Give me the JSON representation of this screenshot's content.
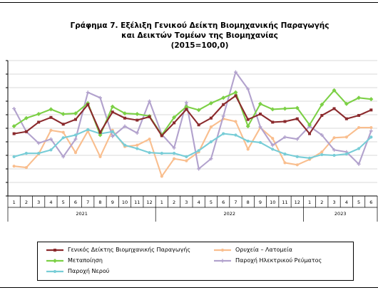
{
  "chart_data": {
    "type": "line",
    "title": [
      "Γράφημα 7. Εξέλιξη Γενικού Δείκτη Βιομηχανικής Παραγωγής",
      "και Δεικτών Τομέων της Βιομηχανίας",
      "(2015=100,0)"
    ],
    "xlabel": "",
    "ylabel": "",
    "months": [
      "1",
      "2",
      "3",
      "4",
      "5",
      "6",
      "7",
      "8",
      "9",
      "10",
      "11",
      "12",
      "1",
      "2",
      "3",
      "4",
      "5",
      "6",
      "7",
      "8",
      "9",
      "10",
      "11",
      "12",
      "1",
      "2",
      "3",
      "4",
      "5",
      "6"
    ],
    "years": [
      "2021",
      "2022",
      "2023"
    ],
    "grid": true,
    "legend": "bottom",
    "series": [
      {
        "name": "Γενικός Δείκτης Βιομηχανικής Παραγωγής",
        "color": "#8B2A2D",
        "marker": "square",
        "values": [
          92,
          95,
          109,
          116,
          106,
          113,
          135,
          94,
          124,
          115,
          112,
          117,
          89,
          108,
          128,
          105,
          115,
          135,
          148,
          113,
          121,
          109,
          110,
          114,
          92,
          119,
          129,
          114,
          119,
          127
        ]
      },
      {
        "name": "Ορυχεία – Λατομεία",
        "color": "#F9BE8E",
        "marker": "circle",
        "values": [
          44,
          42,
          62,
          97,
          94,
          64,
          96,
          58,
          97,
          73,
          75,
          84,
          29,
          55,
          52,
          65,
          102,
          114,
          110,
          69,
          101,
          85,
          49,
          46,
          54,
          65,
          86,
          87,
          101,
          101
        ]
      },
      {
        "name": "Μεταποίηση",
        "color": "#7CD046",
        "marker": "diamond",
        "values": [
          103,
          115,
          121,
          128,
          121,
          122,
          137,
          90,
          132,
          122,
          121,
          118,
          90,
          116,
          132,
          127,
          137,
          145,
          153,
          103,
          136,
          128,
          129,
          130,
          105,
          135,
          156,
          136,
          145,
          143
        ]
      },
      {
        "name": "Παροχή Ηλεκτρικού Ρεύματος",
        "color": "#B2A2CD",
        "marker": "plus",
        "values": [
          129,
          95,
          78,
          84,
          58,
          84,
          153,
          145,
          88,
          103,
          93,
          140,
          91,
          71,
          138,
          40,
          55,
          118,
          183,
          158,
          102,
          75,
          87,
          84,
          103,
          90,
          68,
          65,
          47,
          96
        ]
      },
      {
        "name": "Παροχή Νερού",
        "color": "#78CDD7",
        "marker": "circle",
        "values": [
          58,
          63,
          63,
          68,
          86,
          90,
          98,
          92,
          95,
          75,
          70,
          64,
          63,
          63,
          58,
          67,
          80,
          92,
          90,
          81,
          79,
          69,
          62,
          58,
          56,
          61,
          60,
          62,
          70,
          87
        ]
      }
    ],
    "yticks": [
      0,
      20,
      40,
      60,
      80,
      100,
      120,
      140,
      160,
      180,
      200
    ]
  }
}
